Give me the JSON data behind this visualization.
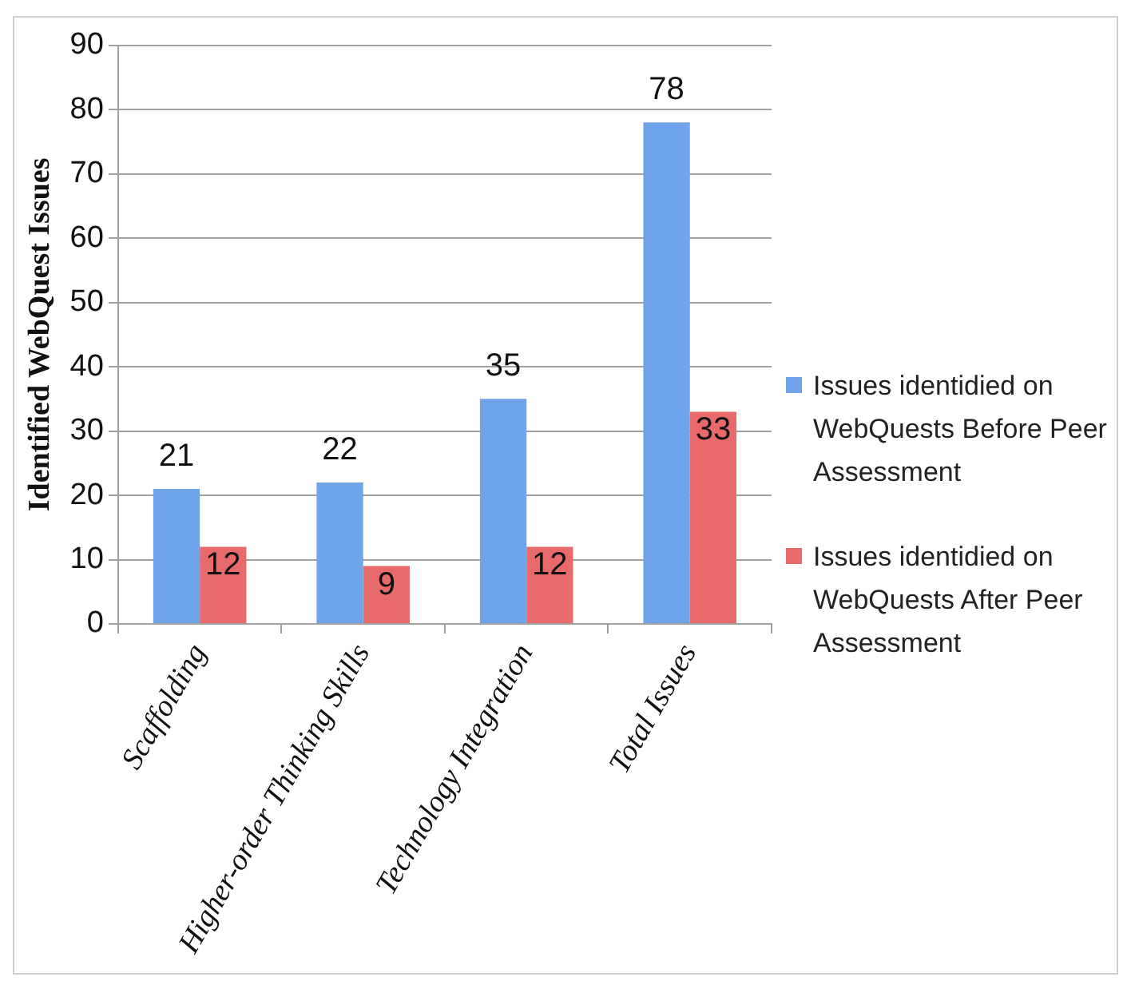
{
  "chart_data": {
    "type": "bar",
    "ylabel": "Identified WebQuest Issues",
    "categories": [
      "Scaffolding",
      "Higher-order Thinking Skills",
      "Technology Integration",
      "Total Issues"
    ],
    "series": [
      {
        "name": "Issues identidied on WebQuests Before Peer Assessment",
        "color": "#6fa3ea",
        "values": [
          21,
          22,
          35,
          78
        ]
      },
      {
        "name": "Issues identidied on WebQuests After Peer Assessment",
        "color": "#e86a6a",
        "values": [
          12,
          9,
          12,
          33
        ]
      }
    ],
    "ylim": [
      0,
      90
    ],
    "yticks": [
      0,
      10,
      20,
      30,
      40,
      50,
      60,
      70,
      80,
      90
    ],
    "grid": "y",
    "legend": "right",
    "data_labels": true
  }
}
